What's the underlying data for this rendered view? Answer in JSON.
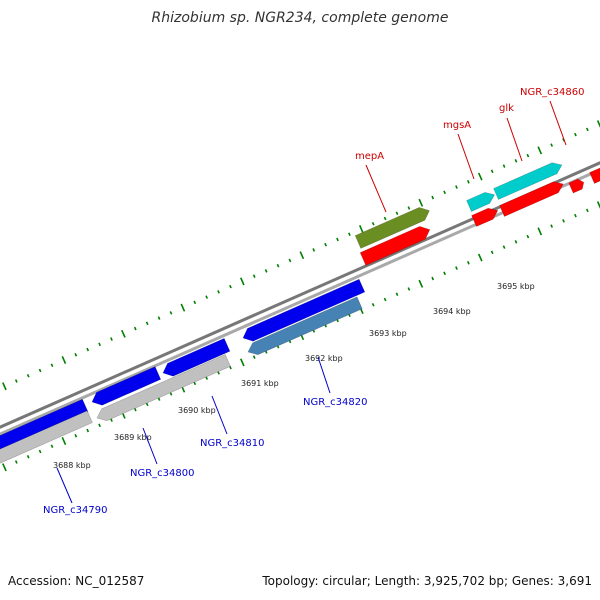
{
  "map": {
    "title": "Rhizobium sp. NGR234, complete genome",
    "accession": "Accession: NC_012587",
    "summary": "Topology: circular; Length: 3,925,702 bp; Genes: 3,691"
  },
  "colors": {
    "forward_gene": "#ff0000",
    "forward_gene_alt": "#00cccc",
    "forward_gene_olive": "#6b8e23",
    "reverse_gene": "#0000ee",
    "reverse_gene_alt": "#4682b4",
    "pseudo_gene": "#c0c0c0",
    "backbone": "#888888",
    "ticks": "#008000",
    "forward_label": "#cc0000",
    "reverse_label": "#0000cc"
  },
  "axis": {
    "unit": "kbp",
    "tick_labels": [
      "3688 kbp",
      "3689 kbp",
      "3690 kbp",
      "3691 kbp",
      "3692 kbp",
      "3693 kbp",
      "3694 kbp",
      "3695 kbp"
    ]
  },
  "genes": [
    {
      "label": "NGR_c34790",
      "strand": "reverse"
    },
    {
      "label": "NGR_c34800",
      "strand": "reverse"
    },
    {
      "label": "NGR_c34810",
      "strand": "reverse"
    },
    {
      "label": "NGR_c34820",
      "strand": "reverse"
    },
    {
      "label": "mepA",
      "strand": "forward"
    },
    {
      "label": "mgsA",
      "strand": "forward"
    },
    {
      "label": "glk",
      "strand": "forward"
    },
    {
      "label": "NGR_c34860",
      "strand": "forward"
    }
  ]
}
